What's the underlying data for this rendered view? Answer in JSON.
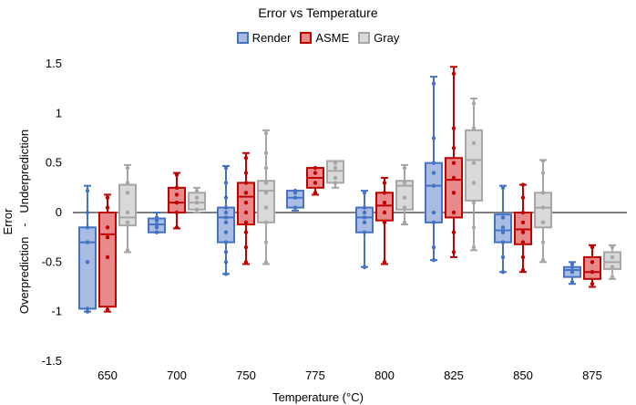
{
  "chart_data": {
    "type": "box",
    "title": "Error vs Temperature",
    "xlabel": "Temperature (°C)",
    "ylabel_top": "Error",
    "ylabel_bottom": "Overprediction   -   Underprediction",
    "ylim": [
      -1.5,
      1.5
    ],
    "yticks": [
      "1.5",
      "1",
      "0.5",
      "0",
      "-0.5",
      "-1",
      "-1.5"
    ],
    "ytick_values": [
      1.5,
      1,
      0.5,
      0,
      -0.5,
      -1,
      -1.5
    ],
    "categories": [
      "650",
      "700",
      "750",
      "775",
      "800",
      "825",
      "850",
      "875"
    ],
    "legend": [
      "Render",
      "ASME",
      "Gray"
    ],
    "colors": {
      "Render": {
        "stroke": "#4472c4",
        "fill": "#a9bde3"
      },
      "ASME": {
        "stroke": "#c00000",
        "fill": "#e88a8a"
      },
      "Gray": {
        "stroke": "#a6a6a6",
        "fill": "#d9d9d9"
      }
    },
    "series": [
      {
        "name": "Render",
        "boxes": [
          {
            "category": "650",
            "min": -1.0,
            "q1": -0.97,
            "median": -0.3,
            "q3": -0.15,
            "max": 0.27,
            "points": [
              -1.0,
              -0.97,
              -0.5,
              -0.3,
              -0.15,
              0.0,
              0.22
            ]
          },
          {
            "category": "700",
            "min": -0.2,
            "q1": -0.2,
            "median": -0.12,
            "q3": -0.06,
            "max": 0.0,
            "points": [
              -0.2,
              -0.15,
              -0.12,
              -0.08,
              -0.05
            ]
          },
          {
            "category": "750",
            "min": -0.62,
            "q1": -0.3,
            "median": -0.05,
            "q3": 0.05,
            "max": 0.47,
            "points": [
              -0.62,
              -0.5,
              -0.4,
              -0.3,
              -0.2,
              -0.1,
              -0.05,
              0.0,
              0.05,
              0.15,
              0.3,
              0.45
            ]
          },
          {
            "category": "775",
            "min": 0.02,
            "q1": 0.05,
            "median": 0.15,
            "q3": 0.22,
            "max": 0.22,
            "points": [
              0.05,
              0.15,
              0.2,
              0.22
            ]
          },
          {
            "category": "800",
            "min": -0.55,
            "q1": -0.2,
            "median": -0.05,
            "q3": 0.05,
            "max": 0.22,
            "points": [
              -0.55,
              -0.2,
              -0.1,
              -0.05,
              0.0,
              0.05,
              0.2
            ]
          },
          {
            "category": "825",
            "min": -0.48,
            "q1": -0.1,
            "median": 0.27,
            "q3": 0.5,
            "max": 1.37,
            "points": [
              -0.48,
              -0.35,
              -0.1,
              0.0,
              0.27,
              0.4,
              0.5,
              0.75,
              1.3
            ]
          },
          {
            "category": "850",
            "min": -0.6,
            "q1": -0.3,
            "median": -0.18,
            "q3": -0.02,
            "max": 0.27,
            "points": [
              -0.6,
              -0.45,
              -0.3,
              -0.2,
              -0.15,
              -0.05,
              0.25
            ]
          },
          {
            "category": "875",
            "min": -0.72,
            "q1": -0.65,
            "median": -0.58,
            "q3": -0.55,
            "max": -0.5,
            "points": [
              -0.7,
              -0.6,
              -0.55,
              -0.52
            ]
          }
        ]
      },
      {
        "name": "ASME",
        "boxes": [
          {
            "category": "650",
            "min": -1.0,
            "q1": -0.95,
            "median": -0.22,
            "q3": 0.0,
            "max": 0.18,
            "points": [
              -0.98,
              -0.45,
              -0.25,
              -0.15,
              0.05,
              0.15
            ]
          },
          {
            "category": "700",
            "min": -0.16,
            "q1": 0.0,
            "median": 0.1,
            "q3": 0.25,
            "max": 0.4,
            "points": [
              -0.15,
              0.0,
              0.1,
              0.18,
              0.25,
              0.38
            ]
          },
          {
            "category": "750",
            "min": -0.52,
            "q1": -0.12,
            "median": 0.16,
            "q3": 0.3,
            "max": 0.6,
            "points": [
              -0.5,
              -0.35,
              -0.2,
              -0.1,
              0.0,
              0.1,
              0.2,
              0.3,
              0.4,
              0.55
            ]
          },
          {
            "category": "775",
            "min": 0.18,
            "q1": 0.25,
            "median": 0.35,
            "q3": 0.45,
            "max": 0.45,
            "points": [
              0.2,
              0.3,
              0.4,
              0.45
            ]
          },
          {
            "category": "800",
            "min": -0.52,
            "q1": -0.08,
            "median": 0.07,
            "q3": 0.2,
            "max": 0.35,
            "points": [
              -0.5,
              -0.1,
              0.0,
              0.1,
              0.2,
              0.3
            ]
          },
          {
            "category": "825",
            "min": -0.45,
            "q1": -0.05,
            "median": 0.33,
            "q3": 0.55,
            "max": 1.47,
            "points": [
              -0.4,
              -0.2,
              0.0,
              0.2,
              0.35,
              0.5,
              0.65,
              0.85,
              1.4
            ]
          },
          {
            "category": "850",
            "min": -0.6,
            "q1": -0.32,
            "median": -0.17,
            "q3": 0.0,
            "max": 0.28,
            "points": [
              -0.58,
              -0.45,
              -0.3,
              -0.2,
              -0.1,
              0.0,
              0.15,
              0.28
            ]
          },
          {
            "category": "875",
            "min": -0.75,
            "q1": -0.67,
            "median": -0.6,
            "q3": -0.45,
            "max": -0.33,
            "points": [
              -0.72,
              -0.6,
              -0.5,
              -0.35
            ]
          }
        ]
      },
      {
        "name": "Gray",
        "boxes": [
          {
            "category": "650",
            "min": -0.4,
            "q1": -0.13,
            "median": -0.05,
            "q3": 0.28,
            "max": 0.48,
            "points": [
              -0.38,
              -0.1,
              0.0,
              0.2,
              0.3,
              0.45
            ]
          },
          {
            "category": "700",
            "min": 0.0,
            "q1": 0.03,
            "median": 0.1,
            "q3": 0.2,
            "max": 0.25,
            "points": [
              0.03,
              0.1,
              0.15,
              0.22
            ]
          },
          {
            "category": "750",
            "min": -0.52,
            "q1": -0.1,
            "median": 0.22,
            "q3": 0.32,
            "max": 0.83,
            "points": [
              -0.5,
              -0.3,
              -0.1,
              0.05,
              0.2,
              0.3,
              0.45,
              0.6,
              0.8
            ]
          },
          {
            "category": "775",
            "min": 0.25,
            "q1": 0.3,
            "median": 0.42,
            "q3": 0.52,
            "max": 0.52,
            "points": [
              0.3,
              0.35,
              0.45,
              0.5
            ]
          },
          {
            "category": "800",
            "min": -0.12,
            "q1": 0.03,
            "median": 0.27,
            "q3": 0.32,
            "max": 0.48,
            "points": [
              -0.1,
              0.05,
              0.15,
              0.3,
              0.45
            ]
          },
          {
            "category": "825",
            "min": -0.38,
            "q1": 0.12,
            "median": 0.53,
            "q3": 0.83,
            "max": 1.15,
            "points": [
              -0.35,
              -0.15,
              0.1,
              0.3,
              0.5,
              0.7,
              0.85,
              1.1
            ]
          },
          {
            "category": "850",
            "min": -0.5,
            "q1": -0.15,
            "median": 0.05,
            "q3": 0.2,
            "max": 0.53,
            "points": [
              -0.48,
              -0.3,
              -0.1,
              0.05,
              0.2,
              0.4,
              0.52
            ]
          },
          {
            "category": "875",
            "min": -0.67,
            "q1": -0.57,
            "median": -0.5,
            "q3": -0.4,
            "max": -0.33,
            "points": [
              -0.65,
              -0.55,
              -0.45,
              -0.35
            ]
          }
        ]
      }
    ]
  }
}
